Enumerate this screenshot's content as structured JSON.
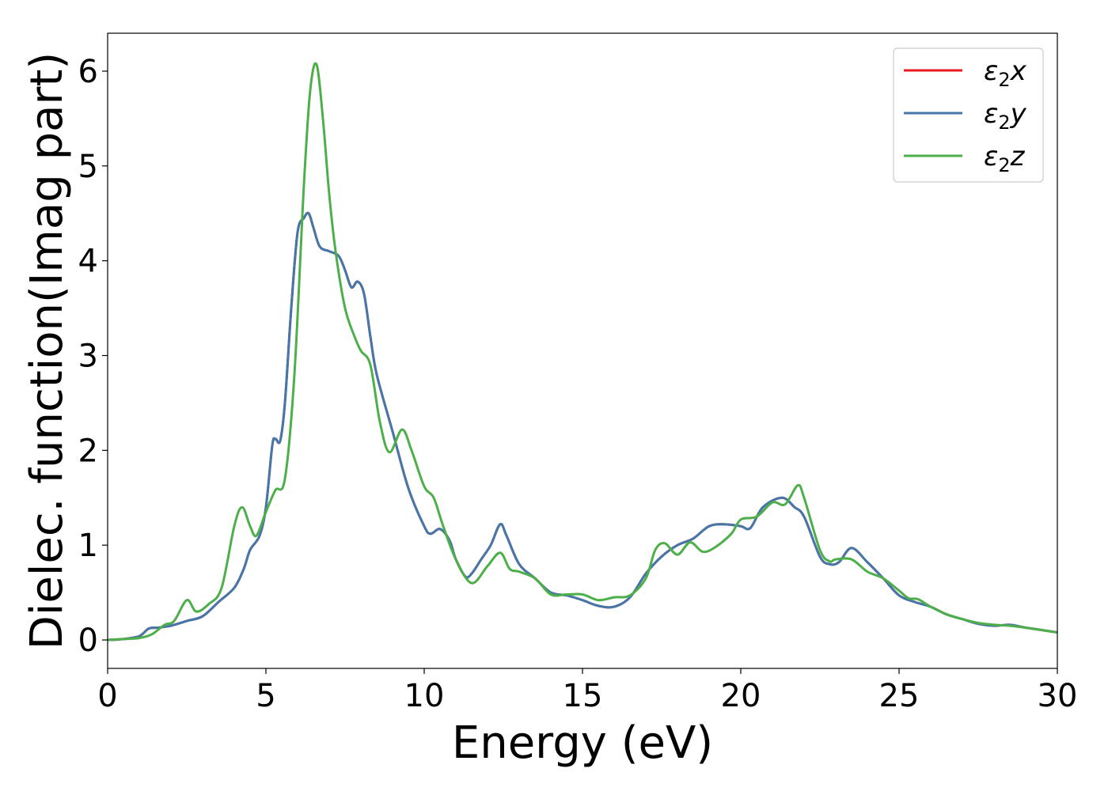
{
  "chart_data": {
    "type": "line",
    "title": "",
    "xlabel": "Energy (eV)",
    "ylabel": "Dielec. function(Imag part)",
    "xlim": [
      0,
      30
    ],
    "ylim": [
      -0.3,
      6.4
    ],
    "xticks": [
      0,
      5,
      10,
      15,
      20,
      25,
      30
    ],
    "yticks": [
      0,
      1,
      2,
      3,
      4,
      5,
      6
    ],
    "grid": false,
    "legend_position": "top-right",
    "series": [
      {
        "name": "ε₂x",
        "legend_main": "ε",
        "legend_sub": "2",
        "legend_suffix": "x",
        "color": "#e41a1c",
        "points": [
          [
            0,
            0
          ],
          [
            0.5,
            0.01
          ],
          [
            1,
            0.04
          ],
          [
            1.3,
            0.12
          ],
          [
            1.6,
            0.13
          ],
          [
            2,
            0.15
          ],
          [
            2.5,
            0.2
          ],
          [
            3,
            0.25
          ],
          [
            3.5,
            0.4
          ],
          [
            4,
            0.55
          ],
          [
            4.3,
            0.75
          ],
          [
            4.5,
            0.95
          ],
          [
            4.8,
            1.1
          ],
          [
            5.0,
            1.4
          ],
          [
            5.2,
            2.05
          ],
          [
            5.3,
            2.12
          ],
          [
            5.45,
            2.1
          ],
          [
            5.6,
            2.5
          ],
          [
            5.8,
            3.5
          ],
          [
            6.0,
            4.3
          ],
          [
            6.2,
            4.45
          ],
          [
            6.35,
            4.5
          ],
          [
            6.5,
            4.35
          ],
          [
            6.7,
            4.15
          ],
          [
            7.0,
            4.1
          ],
          [
            7.3,
            4.05
          ],
          [
            7.5,
            3.9
          ],
          [
            7.7,
            3.72
          ],
          [
            7.9,
            3.78
          ],
          [
            8.1,
            3.65
          ],
          [
            8.3,
            3.2
          ],
          [
            8.5,
            2.8
          ],
          [
            9,
            2.2
          ],
          [
            9.5,
            1.6
          ],
          [
            10,
            1.2
          ],
          [
            10.2,
            1.12
          ],
          [
            10.5,
            1.17
          ],
          [
            10.8,
            1.05
          ],
          [
            11,
            0.85
          ],
          [
            11.3,
            0.67
          ],
          [
            11.5,
            0.7
          ],
          [
            11.8,
            0.85
          ],
          [
            12.1,
            1.0
          ],
          [
            12.4,
            1.22
          ],
          [
            12.6,
            1.1
          ],
          [
            13,
            0.8
          ],
          [
            13.5,
            0.65
          ],
          [
            14,
            0.5
          ],
          [
            14.5,
            0.47
          ],
          [
            15,
            0.42
          ],
          [
            15.5,
            0.36
          ],
          [
            16,
            0.35
          ],
          [
            16.5,
            0.45
          ],
          [
            17,
            0.7
          ],
          [
            17.5,
            0.88
          ],
          [
            18,
            1.0
          ],
          [
            18.5,
            1.07
          ],
          [
            19,
            1.2
          ],
          [
            19.5,
            1.22
          ],
          [
            20,
            1.2
          ],
          [
            20.3,
            1.18
          ],
          [
            20.7,
            1.4
          ],
          [
            21.3,
            1.5
          ],
          [
            21.7,
            1.4
          ],
          [
            22,
            1.3
          ],
          [
            22.5,
            0.88
          ],
          [
            22.8,
            0.8
          ],
          [
            23.1,
            0.82
          ],
          [
            23.5,
            0.97
          ],
          [
            24,
            0.82
          ],
          [
            24.5,
            0.65
          ],
          [
            25,
            0.47
          ],
          [
            25.5,
            0.4
          ],
          [
            26,
            0.35
          ],
          [
            26.5,
            0.27
          ],
          [
            27,
            0.22
          ],
          [
            27.5,
            0.17
          ],
          [
            28,
            0.15
          ],
          [
            28.5,
            0.16
          ],
          [
            29,
            0.13
          ],
          [
            30,
            0.08
          ]
        ]
      },
      {
        "name": "ε₂y",
        "legend_main": "ε",
        "legend_sub": "2",
        "legend_suffix": "y",
        "color": "#4477aa",
        "points": [
          [
            0,
            0
          ],
          [
            0.5,
            0.01
          ],
          [
            1,
            0.04
          ],
          [
            1.3,
            0.12
          ],
          [
            1.6,
            0.13
          ],
          [
            2,
            0.15
          ],
          [
            2.5,
            0.2
          ],
          [
            3,
            0.25
          ],
          [
            3.5,
            0.4
          ],
          [
            4,
            0.55
          ],
          [
            4.3,
            0.75
          ],
          [
            4.5,
            0.95
          ],
          [
            4.8,
            1.1
          ],
          [
            5.0,
            1.4
          ],
          [
            5.2,
            2.05
          ],
          [
            5.3,
            2.12
          ],
          [
            5.45,
            2.1
          ],
          [
            5.6,
            2.5
          ],
          [
            5.8,
            3.5
          ],
          [
            6.0,
            4.3
          ],
          [
            6.2,
            4.45
          ],
          [
            6.35,
            4.5
          ],
          [
            6.5,
            4.35
          ],
          [
            6.7,
            4.15
          ],
          [
            7.0,
            4.1
          ],
          [
            7.3,
            4.05
          ],
          [
            7.5,
            3.9
          ],
          [
            7.7,
            3.72
          ],
          [
            7.9,
            3.78
          ],
          [
            8.1,
            3.65
          ],
          [
            8.3,
            3.2
          ],
          [
            8.5,
            2.8
          ],
          [
            9,
            2.2
          ],
          [
            9.5,
            1.6
          ],
          [
            10,
            1.2
          ],
          [
            10.2,
            1.12
          ],
          [
            10.5,
            1.17
          ],
          [
            10.8,
            1.05
          ],
          [
            11,
            0.85
          ],
          [
            11.3,
            0.67
          ],
          [
            11.5,
            0.7
          ],
          [
            11.8,
            0.85
          ],
          [
            12.1,
            1.0
          ],
          [
            12.4,
            1.22
          ],
          [
            12.6,
            1.1
          ],
          [
            13,
            0.8
          ],
          [
            13.5,
            0.65
          ],
          [
            14,
            0.5
          ],
          [
            14.5,
            0.47
          ],
          [
            15,
            0.42
          ],
          [
            15.5,
            0.36
          ],
          [
            16,
            0.35
          ],
          [
            16.5,
            0.45
          ],
          [
            17,
            0.7
          ],
          [
            17.5,
            0.88
          ],
          [
            18,
            1.0
          ],
          [
            18.5,
            1.07
          ],
          [
            19,
            1.2
          ],
          [
            19.5,
            1.22
          ],
          [
            20,
            1.2
          ],
          [
            20.3,
            1.18
          ],
          [
            20.7,
            1.4
          ],
          [
            21.3,
            1.5
          ],
          [
            21.7,
            1.4
          ],
          [
            22,
            1.3
          ],
          [
            22.5,
            0.88
          ],
          [
            22.8,
            0.8
          ],
          [
            23.1,
            0.82
          ],
          [
            23.5,
            0.97
          ],
          [
            24,
            0.82
          ],
          [
            24.5,
            0.65
          ],
          [
            25,
            0.47
          ],
          [
            25.5,
            0.4
          ],
          [
            26,
            0.35
          ],
          [
            26.5,
            0.27
          ],
          [
            27,
            0.22
          ],
          [
            27.5,
            0.17
          ],
          [
            28,
            0.15
          ],
          [
            28.5,
            0.16
          ],
          [
            29,
            0.13
          ],
          [
            30,
            0.08
          ]
        ]
      },
      {
        "name": "ε₂z",
        "legend_main": "ε",
        "legend_sub": "2",
        "legend_suffix": "z",
        "color": "#4daf4a",
        "points": [
          [
            0,
            0
          ],
          [
            0.5,
            0.01
          ],
          [
            1,
            0.02
          ],
          [
            1.4,
            0.06
          ],
          [
            1.8,
            0.16
          ],
          [
            2.1,
            0.2
          ],
          [
            2.5,
            0.42
          ],
          [
            2.8,
            0.3
          ],
          [
            3.2,
            0.38
          ],
          [
            3.6,
            0.55
          ],
          [
            4.0,
            1.2
          ],
          [
            4.25,
            1.4
          ],
          [
            4.5,
            1.2
          ],
          [
            4.7,
            1.1
          ],
          [
            5.0,
            1.35
          ],
          [
            5.3,
            1.58
          ],
          [
            5.6,
            1.7
          ],
          [
            5.9,
            2.8
          ],
          [
            6.2,
            4.8
          ],
          [
            6.4,
            5.8
          ],
          [
            6.6,
            6.07
          ],
          [
            6.8,
            5.5
          ],
          [
            7.0,
            4.7
          ],
          [
            7.2,
            4.1
          ],
          [
            7.5,
            3.5
          ],
          [
            7.8,
            3.2
          ],
          [
            8.0,
            3.05
          ],
          [
            8.3,
            2.9
          ],
          [
            8.6,
            2.3
          ],
          [
            8.9,
            1.98
          ],
          [
            9.3,
            2.22
          ],
          [
            9.6,
            2.0
          ],
          [
            10,
            1.62
          ],
          [
            10.3,
            1.5
          ],
          [
            10.6,
            1.2
          ],
          [
            11,
            0.85
          ],
          [
            11.5,
            0.6
          ],
          [
            12,
            0.78
          ],
          [
            12.4,
            0.92
          ],
          [
            12.7,
            0.75
          ],
          [
            13,
            0.72
          ],
          [
            13.5,
            0.65
          ],
          [
            14,
            0.48
          ],
          [
            14.5,
            0.48
          ],
          [
            15,
            0.48
          ],
          [
            15.5,
            0.42
          ],
          [
            16,
            0.45
          ],
          [
            16.5,
            0.47
          ],
          [
            17,
            0.65
          ],
          [
            17.3,
            0.95
          ],
          [
            17.6,
            1.02
          ],
          [
            18,
            0.9
          ],
          [
            18.4,
            1.03
          ],
          [
            18.8,
            0.93
          ],
          [
            19.2,
            0.98
          ],
          [
            19.7,
            1.12
          ],
          [
            20,
            1.27
          ],
          [
            20.5,
            1.3
          ],
          [
            21,
            1.45
          ],
          [
            21.4,
            1.43
          ],
          [
            21.8,
            1.63
          ],
          [
            22,
            1.5
          ],
          [
            22.5,
            0.95
          ],
          [
            22.8,
            0.83
          ],
          [
            23,
            0.85
          ],
          [
            23.5,
            0.85
          ],
          [
            24,
            0.72
          ],
          [
            24.5,
            0.65
          ],
          [
            25,
            0.52
          ],
          [
            25.3,
            0.44
          ],
          [
            25.6,
            0.43
          ],
          [
            26,
            0.35
          ],
          [
            26.5,
            0.27
          ],
          [
            27,
            0.22
          ],
          [
            27.5,
            0.18
          ],
          [
            28,
            0.16
          ],
          [
            28.5,
            0.15
          ],
          [
            29,
            0.13
          ],
          [
            30,
            0.08
          ]
        ]
      }
    ]
  }
}
